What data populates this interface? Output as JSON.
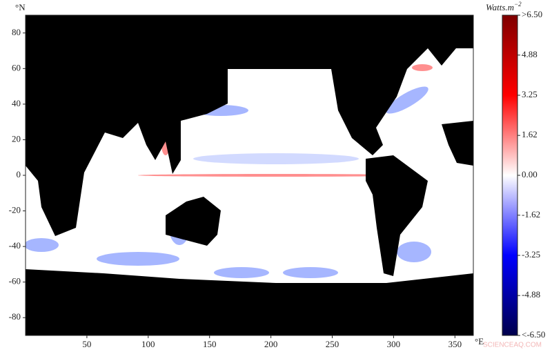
{
  "chart_data": {
    "type": "map",
    "x_unit": "°E",
    "y_unit": "°N",
    "xlim": [
      0,
      365
    ],
    "ylim": [
      -90,
      90
    ],
    "xticks": [
      50,
      100,
      150,
      200,
      250,
      300,
      350
    ],
    "yticks": [
      -80,
      -60,
      -40,
      -20,
      0,
      20,
      40,
      60,
      80
    ],
    "colorbar": {
      "label": "Watts.m",
      "label_superscript": "−2",
      "lim": [
        -6.5,
        6.5
      ],
      "ticks": [
        {
          "value": 6.5,
          "label": ">6.50"
        },
        4.88,
        3.25,
        1.62,
        {
          "value": 0,
          "label": "0.00"
        },
        -1.62,
        -3.25,
        -4.88,
        {
          "value": -6.5,
          "label": "<-6.50"
        }
      ],
      "colors": [
        "#00004c",
        "#0000ff",
        "#ffffff",
        "#ff0000",
        "#7f0000"
      ]
    },
    "watermark": "SCIENCEAQ.COM"
  }
}
